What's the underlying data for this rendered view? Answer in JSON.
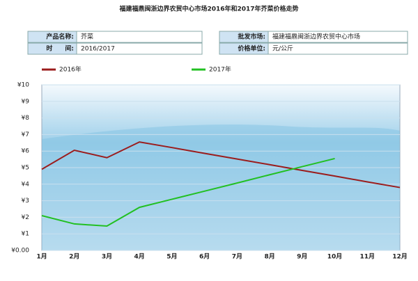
{
  "chart_data": {
    "type": "line",
    "title": "福建福鼎闽浙边界农贸中心市场2016年和2017年芥菜价格走势",
    "info": [
      {
        "label": "产品名称:",
        "value": "芥菜"
      },
      {
        "label": "批发市场:",
        "value": "福建福鼎闽浙边界农贸中心市场"
      },
      {
        "label": "时　　间:",
        "value": "2016/2017"
      },
      {
        "label": "价格单位:",
        "value": "元/公斤"
      }
    ],
    "categories": [
      "1月",
      "2月",
      "3月",
      "4月",
      "5月",
      "6月",
      "7月",
      "8月",
      "9月",
      "10月",
      "11月",
      "12月"
    ],
    "series": [
      {
        "name": "2016年",
        "color": "#9b1c1c",
        "values": [
          4.9,
          6.05,
          5.6,
          6.55,
          6.21,
          5.86,
          5.52,
          5.18,
          4.83,
          4.49,
          4.14,
          3.8
        ]
      },
      {
        "name": "2017年",
        "color": "#22c022",
        "values": [
          2.1,
          1.6,
          1.47,
          2.6,
          3.09,
          3.58,
          4.07,
          4.57,
          5.06,
          5.55,
          null,
          null
        ]
      }
    ],
    "ylim": [
      0,
      10
    ],
    "yticks": [
      {
        "value": 0,
        "label": "¥0.00"
      },
      {
        "value": 1,
        "label": "¥1"
      },
      {
        "value": 2,
        "label": "¥2"
      },
      {
        "value": 3,
        "label": "¥3"
      },
      {
        "value": 4,
        "label": "¥4"
      },
      {
        "value": 5,
        "label": "¥5"
      },
      {
        "value": 6,
        "label": "¥6"
      },
      {
        "value": 7,
        "label": "¥7"
      },
      {
        "value": 8,
        "label": "¥8"
      },
      {
        "value": 9,
        "label": "¥9"
      },
      {
        "value": 10,
        "label": "¥10"
      }
    ],
    "grid": true
  }
}
